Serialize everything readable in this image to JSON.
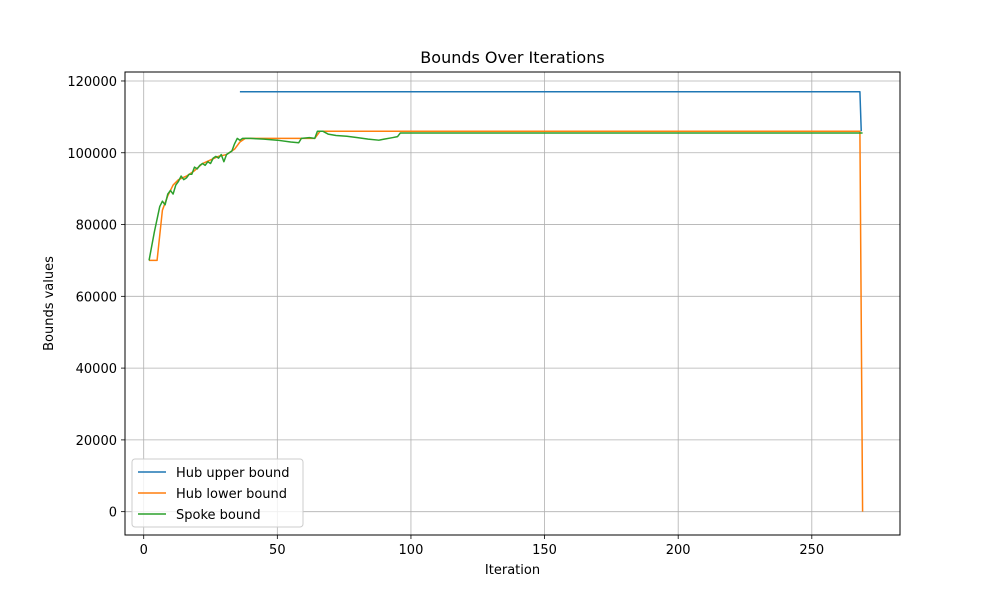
{
  "chart_data": {
    "type": "line",
    "title": "Bounds Over Iterations",
    "xlabel": "Iteration",
    "ylabel": "Bounds values",
    "xlim": [
      -7,
      283
    ],
    "ylim": [
      -6500,
      122500
    ],
    "xticks": [
      0,
      50,
      100,
      150,
      200,
      250
    ],
    "yticks": [
      0,
      20000,
      40000,
      60000,
      80000,
      100000,
      120000
    ],
    "grid": true,
    "legend_position": "lower-left",
    "series": [
      {
        "name": "Hub upper bound",
        "color": "#1f77b4",
        "points": [
          [
            36,
            117000
          ],
          [
            268,
            117000
          ],
          [
            268.5,
            106000
          ]
        ]
      },
      {
        "name": "Hub lower bound",
        "color": "#ff7f0e",
        "points": [
          [
            2,
            70000
          ],
          [
            5,
            70000
          ],
          [
            7,
            84000
          ],
          [
            9,
            88000
          ],
          [
            11,
            91000
          ],
          [
            13,
            92500
          ],
          [
            16,
            93500
          ],
          [
            19,
            95000
          ],
          [
            22,
            97000
          ],
          [
            25,
            98000
          ],
          [
            28,
            99000
          ],
          [
            31,
            99500
          ],
          [
            34,
            101000
          ],
          [
            36,
            103000
          ],
          [
            38,
            104000
          ],
          [
            62,
            104000
          ],
          [
            64,
            104000
          ],
          [
            66,
            106000
          ],
          [
            268,
            106000
          ],
          [
            269,
            0
          ]
        ]
      },
      {
        "name": "Spoke bound",
        "color": "#2ca02c",
        "points": [
          [
            2,
            70000
          ],
          [
            4,
            78000
          ],
          [
            6,
            85000
          ],
          [
            7,
            86500
          ],
          [
            8,
            85500
          ],
          [
            9,
            88500
          ],
          [
            10,
            89500
          ],
          [
            11,
            88500
          ],
          [
            12,
            91000
          ],
          [
            13,
            92000
          ],
          [
            14,
            93500
          ],
          [
            15,
            92500
          ],
          [
            16,
            93000
          ],
          [
            17,
            94000
          ],
          [
            18,
            94000
          ],
          [
            19,
            96000
          ],
          [
            20,
            95500
          ],
          [
            21,
            96500
          ],
          [
            22,
            97000
          ],
          [
            23,
            96500
          ],
          [
            24,
            97500
          ],
          [
            25,
            97000
          ],
          [
            26,
            98500
          ],
          [
            27,
            99000
          ],
          [
            28,
            98500
          ],
          [
            29,
            99500
          ],
          [
            30,
            97500
          ],
          [
            31,
            99500
          ],
          [
            32,
            100000
          ],
          [
            33,
            100500
          ],
          [
            34,
            102500
          ],
          [
            35,
            104000
          ],
          [
            36,
            103500
          ],
          [
            37,
            104000
          ],
          [
            40,
            104000
          ],
          [
            45,
            103800
          ],
          [
            50,
            103500
          ],
          [
            55,
            103000
          ],
          [
            58,
            102800
          ],
          [
            59,
            104000
          ],
          [
            62,
            104200
          ],
          [
            64,
            104000
          ],
          [
            65,
            106000
          ],
          [
            67,
            106000
          ],
          [
            69,
            105200
          ],
          [
            72,
            104800
          ],
          [
            76,
            104600
          ],
          [
            80,
            104200
          ],
          [
            84,
            103800
          ],
          [
            88,
            103500
          ],
          [
            90,
            103800
          ],
          [
            93,
            104200
          ],
          [
            95,
            104500
          ],
          [
            96,
            105500
          ],
          [
            100,
            105500
          ],
          [
            150,
            105500
          ],
          [
            200,
            105500
          ],
          [
            268,
            105500
          ],
          [
            269,
            105500
          ]
        ]
      }
    ]
  }
}
